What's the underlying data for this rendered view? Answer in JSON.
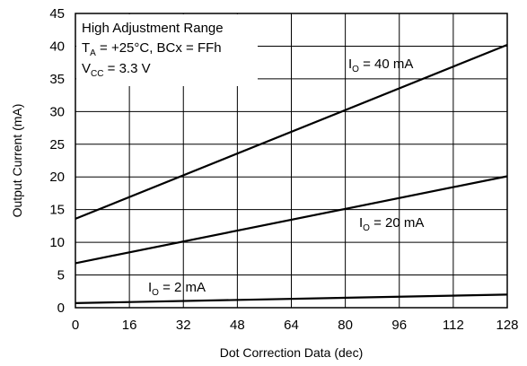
{
  "chart_data": {
    "type": "line",
    "xlabel": "Dot Correction Data (dec)",
    "ylabel": "Output Current (mA)",
    "xlim": [
      0,
      128
    ],
    "ylim": [
      0,
      45
    ],
    "xticks": [
      0,
      16,
      32,
      48,
      64,
      80,
      96,
      112,
      128
    ],
    "yticks": [
      0,
      5,
      10,
      15,
      20,
      25,
      30,
      35,
      40,
      45
    ],
    "grid": true,
    "annotation_lines": [
      {
        "text": "High Adjustment Range"
      },
      {
        "base": "T",
        "sub": "A",
        "rest": " = +25°C, BCx = FFh"
      },
      {
        "base": "V",
        "sub": "CC",
        "rest": " = 3.3 V"
      }
    ],
    "series": [
      {
        "label_base": "I",
        "label_sub": "O",
        "label_rest": " = 40 mA",
        "x": [
          0,
          128
        ],
        "y": [
          13.6,
          40.2
        ]
      },
      {
        "label_base": "I",
        "label_sub": "O",
        "label_rest": " = 20 mA",
        "x": [
          0,
          128
        ],
        "y": [
          6.8,
          20.1
        ]
      },
      {
        "label_base": "I",
        "label_sub": "O",
        "label_rest": " = 2 mA",
        "x": [
          0,
          128
        ],
        "y": [
          0.7,
          2.0
        ]
      }
    ]
  }
}
